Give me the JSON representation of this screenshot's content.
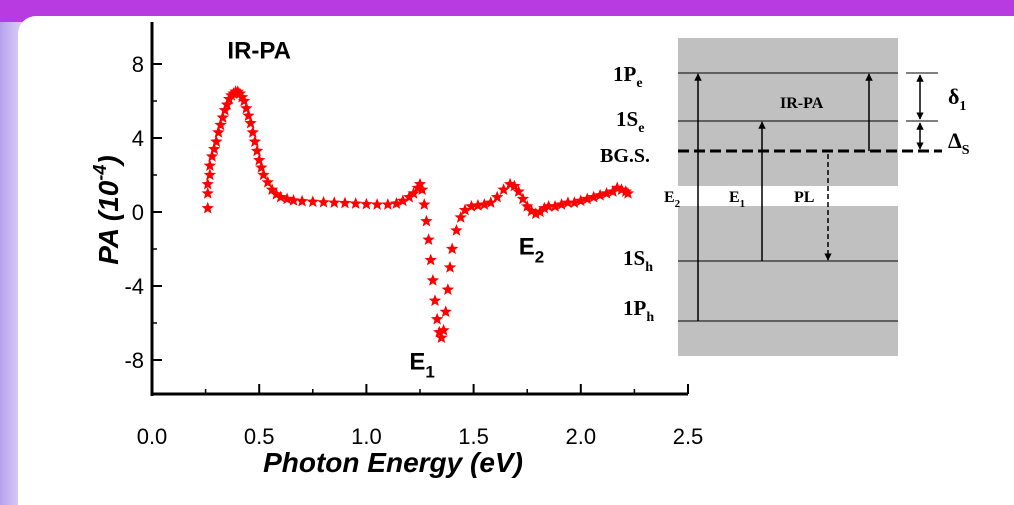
{
  "colors": {
    "banner": "#b73be0",
    "data": "#ff0000",
    "panel": "#c0c0c0"
  },
  "chart_data": [
    {
      "type": "scatter",
      "xlabel": "Photon Energy (eV)",
      "ylabel_main": "PA (10",
      "ylabel_exp": "-4",
      "ylabel_close": ")",
      "xlim": [
        0,
        2.5
      ],
      "ylim": [
        -10,
        10
      ],
      "x_ticks": [
        0.0,
        0.5,
        1.0,
        1.5,
        2.0,
        2.5
      ],
      "x_tick_labels": [
        "0.0",
        "0.5",
        "1.0",
        "1.5",
        "2.0",
        "2.5"
      ],
      "y_ticks": [
        8,
        4,
        0,
        -4,
        -8
      ],
      "y_tick_labels": [
        "8",
        "4",
        "0",
        "-4",
        "-8"
      ],
      "marker": "star",
      "annotations": [
        {
          "text": "IR-PA",
          "x": 0.5,
          "y": 8.3
        },
        {
          "text": "E",
          "sub": "1",
          "x": 1.26,
          "y": -8.5
        },
        {
          "text": "E",
          "sub": "2",
          "x": 1.77,
          "y": -2.3
        }
      ],
      "points": [
        [
          0.26,
          0.2
        ],
        [
          0.26,
          1.0
        ],
        [
          0.26,
          1.5
        ],
        [
          0.27,
          2.0
        ],
        [
          0.27,
          2.5
        ],
        [
          0.28,
          3.0
        ],
        [
          0.29,
          3.4
        ],
        [
          0.3,
          3.8
        ],
        [
          0.31,
          4.3
        ],
        [
          0.32,
          4.7
        ],
        [
          0.33,
          5.1
        ],
        [
          0.34,
          5.5
        ],
        [
          0.35,
          5.8
        ],
        [
          0.36,
          6.1
        ],
        [
          0.37,
          6.3
        ],
        [
          0.38,
          6.4
        ],
        [
          0.39,
          6.5
        ],
        [
          0.4,
          6.5
        ],
        [
          0.41,
          6.4
        ],
        [
          0.42,
          6.2
        ],
        [
          0.43,
          6.0
        ],
        [
          0.44,
          5.6
        ],
        [
          0.45,
          5.2
        ],
        [
          0.46,
          4.8
        ],
        [
          0.47,
          4.3
        ],
        [
          0.48,
          3.8
        ],
        [
          0.49,
          3.3
        ],
        [
          0.5,
          2.8
        ],
        [
          0.51,
          2.4
        ],
        [
          0.52,
          2.0
        ],
        [
          0.54,
          1.6
        ],
        [
          0.56,
          1.2
        ],
        [
          0.58,
          0.95
        ],
        [
          0.6,
          0.8
        ],
        [
          0.63,
          0.7
        ],
        [
          0.66,
          0.62
        ],
        [
          0.7,
          0.58
        ],
        [
          0.75,
          0.55
        ],
        [
          0.8,
          0.52
        ],
        [
          0.85,
          0.5
        ],
        [
          0.9,
          0.48
        ],
        [
          0.95,
          0.45
        ],
        [
          1.0,
          0.42
        ],
        [
          1.05,
          0.4
        ],
        [
          1.1,
          0.4
        ],
        [
          1.14,
          0.45
        ],
        [
          1.17,
          0.6
        ],
        [
          1.2,
          0.8
        ],
        [
          1.22,
          1.0
        ],
        [
          1.24,
          1.3
        ],
        [
          1.25,
          1.5
        ],
        [
          1.26,
          1.2
        ],
        [
          1.27,
          0.4
        ],
        [
          1.28,
          -0.5
        ],
        [
          1.29,
          -1.5
        ],
        [
          1.3,
          -2.6
        ],
        [
          1.31,
          -3.7
        ],
        [
          1.32,
          -4.8
        ],
        [
          1.33,
          -5.8
        ],
        [
          1.34,
          -6.5
        ],
        [
          1.35,
          -6.8
        ],
        [
          1.36,
          -6.4
        ],
        [
          1.37,
          -5.4
        ],
        [
          1.38,
          -4.2
        ],
        [
          1.39,
          -3.0
        ],
        [
          1.4,
          -2.0
        ],
        [
          1.42,
          -1.0
        ],
        [
          1.44,
          -0.3
        ],
        [
          1.46,
          0.1
        ],
        [
          1.49,
          0.3
        ],
        [
          1.52,
          0.35
        ],
        [
          1.55,
          0.4
        ],
        [
          1.58,
          0.5
        ],
        [
          1.61,
          0.8
        ],
        [
          1.64,
          1.2
        ],
        [
          1.67,
          1.5
        ],
        [
          1.69,
          1.4
        ],
        [
          1.71,
          1.1
        ],
        [
          1.73,
          0.7
        ],
        [
          1.75,
          0.3
        ],
        [
          1.77,
          0.05
        ],
        [
          1.79,
          -0.1
        ],
        [
          1.81,
          0.0
        ],
        [
          1.83,
          0.2
        ],
        [
          1.85,
          0.3
        ],
        [
          1.88,
          0.3
        ],
        [
          1.91,
          0.4
        ],
        [
          1.94,
          0.5
        ],
        [
          1.97,
          0.5
        ],
        [
          2.0,
          0.6
        ],
        [
          2.03,
          0.7
        ],
        [
          2.06,
          0.8
        ],
        [
          2.09,
          0.9
        ],
        [
          2.12,
          1.0
        ],
        [
          2.15,
          1.1
        ],
        [
          2.17,
          1.3
        ],
        [
          2.19,
          1.2
        ],
        [
          2.21,
          1.1
        ],
        [
          2.22,
          1.0
        ]
      ]
    },
    {
      "type": "energy-level-diagram",
      "levels": [
        {
          "label": "1P",
          "sub": "e"
        },
        {
          "label": "1S",
          "sub": "e"
        },
        {
          "label": "BG.S.",
          "sub": ""
        },
        {
          "label": "1S",
          "sub": "h"
        },
        {
          "label": "1P",
          "sub": "h"
        }
      ],
      "transitions": [
        {
          "label": "IR-PA",
          "sub": ""
        },
        {
          "label": "E",
          "sub": "1"
        },
        {
          "label": "E",
          "sub": "2"
        },
        {
          "label": "PL",
          "sub": ""
        }
      ],
      "gaps": [
        {
          "symbol": "δ",
          "sub": "1"
        },
        {
          "symbol": "Δ",
          "sub": "S"
        }
      ]
    }
  ]
}
